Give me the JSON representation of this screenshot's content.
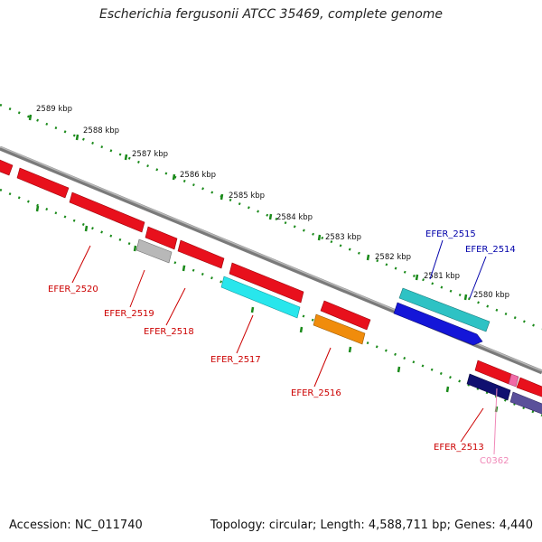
{
  "title": "Escherichia fergusonii ATCC 35469, complete genome",
  "accession": "Accession: NC_011740",
  "summary": "Topology: circular; Length: 4,588,711 bp; Genes: 4,440",
  "scale_labels": [
    "2589 kbp",
    "2588 kbp",
    "2587 kbp",
    "2586 kbp",
    "2585 kbp",
    "2584 kbp",
    "2583 kbp",
    "2582 kbp",
    "2581 kbp",
    "2580 kbp"
  ],
  "gene_labels": {
    "efer_2520": "EFER_2520",
    "efer_2519": "EFER_2519",
    "efer_2518": "EFER_2518",
    "efer_2517": "EFER_2517",
    "efer_2516": "EFER_2516",
    "efer_2515": "EFER_2515",
    "efer_2514": "EFER_2514",
    "efer_2513": "EFER_2513",
    "c0362": "C0362"
  },
  "colors": {
    "backbone": "#8a8a8a",
    "scale_dots": "#1a8a1a",
    "red": "#e8101c",
    "gray": "#b8b8b8",
    "cyan": "#28e6ec",
    "orange": "#f08c0c",
    "teal": "#2ec2c4",
    "blue": "#1416d8",
    "navy": "#101070",
    "slate": "#5a509a",
    "pink": "#f06aa6",
    "label_red": "#cc0000",
    "label_blue": "#0000aa",
    "label_pink": "#f088b8"
  }
}
